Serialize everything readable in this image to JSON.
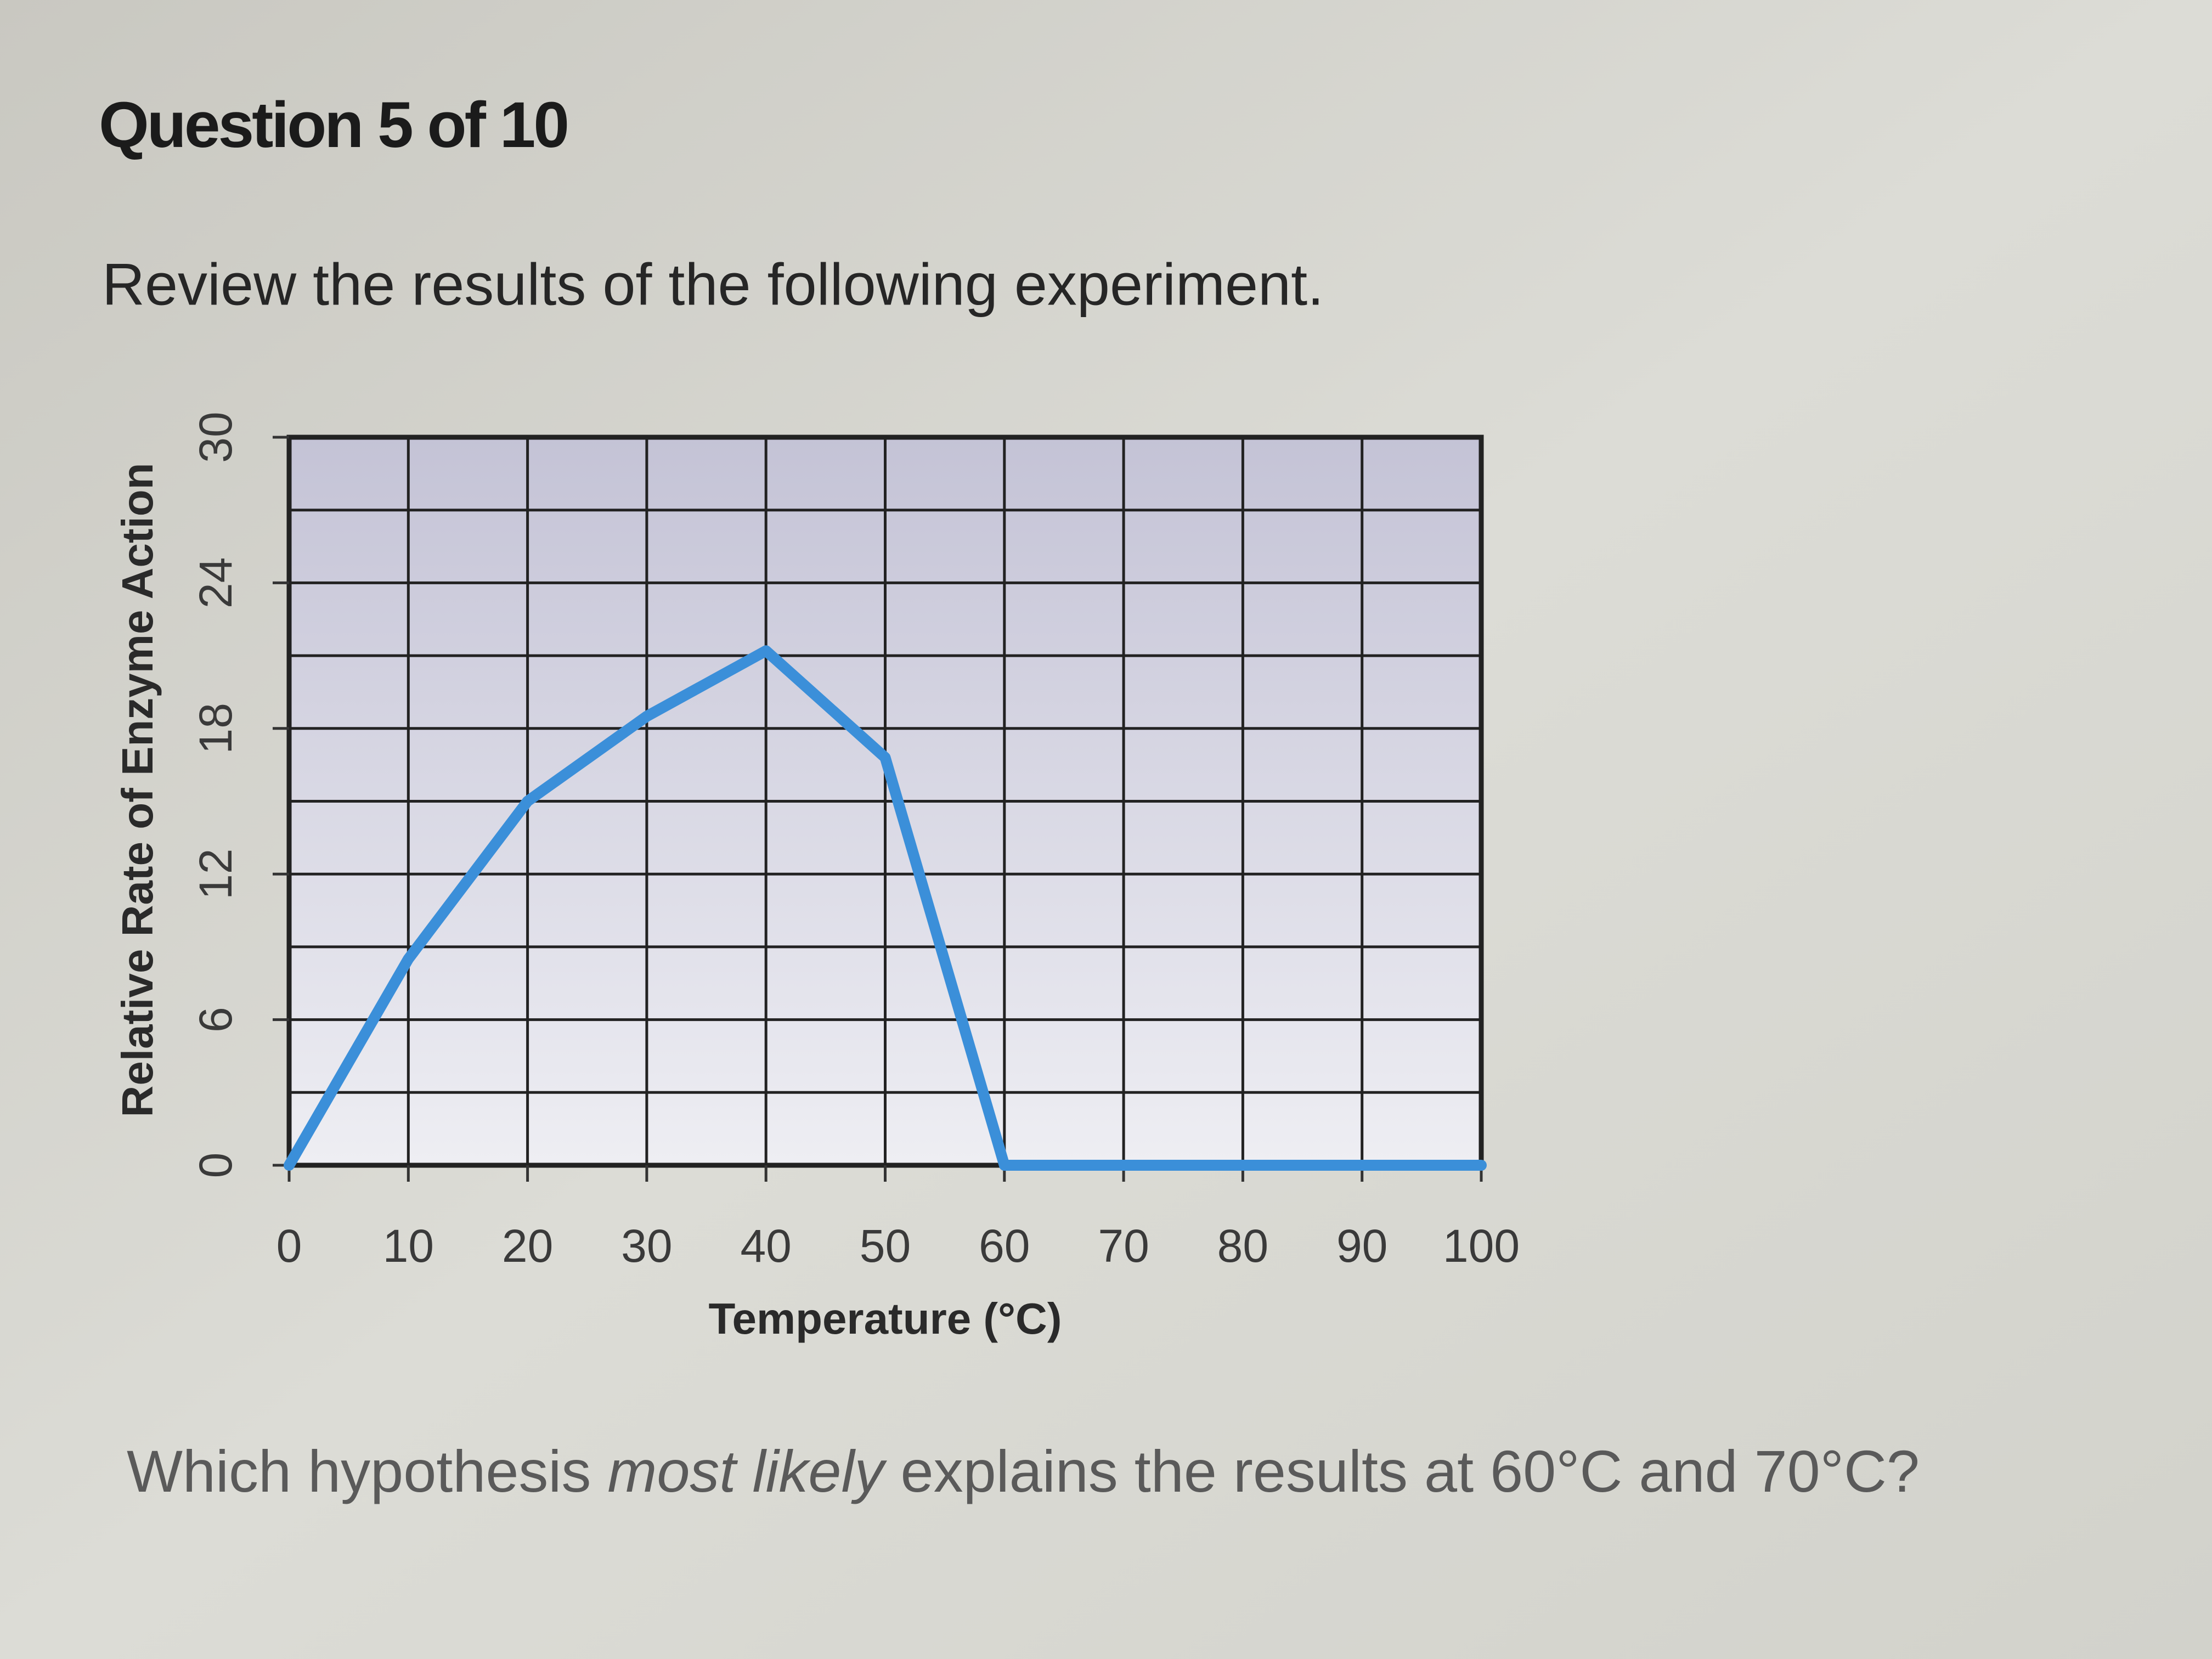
{
  "header": {
    "title": "Question 5 of 10"
  },
  "prompt": "Review the results of the following experiment.",
  "chart_data": {
    "type": "line",
    "x": [
      0,
      10,
      20,
      30,
      40,
      50,
      60,
      70,
      80,
      90,
      100
    ],
    "values": [
      0,
      8.5,
      15,
      18.5,
      21.2,
      16.8,
      0,
      0,
      0,
      0,
      0
    ],
    "color": "#3b8fd9",
    "xlabel": "Temperature (°C)",
    "ylabel": "Relative Rate of Enzyme Action",
    "xlim": [
      0,
      100
    ],
    "xticks": [
      0,
      10,
      20,
      30,
      40,
      50,
      60,
      70,
      80,
      90,
      100
    ],
    "ylim": [
      0,
      30
    ],
    "yticks": [
      0,
      6,
      12,
      18,
      24,
      30
    ],
    "ygrid": [
      0,
      3,
      6,
      9,
      12,
      15,
      18,
      21,
      24,
      27,
      30
    ],
    "grid": true
  },
  "question": {
    "before": "Which hypothesis ",
    "emphasis": "most likely",
    "after": " explains the results at 60°C and 70°C?"
  }
}
